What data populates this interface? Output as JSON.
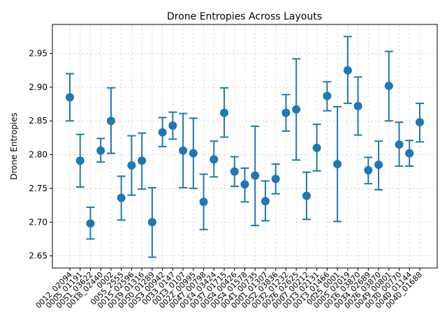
{
  "chart_data": {
    "type": "scatter",
    "title": "Drone Entropies Across Layouts",
    "xlabel": "",
    "ylabel": "Drone Entropies",
    "ylim": [
      2.632,
      2.993
    ],
    "yticks": [
      "2.65",
      "2.70",
      "2.75",
      "2.80",
      "2.85",
      "2.90",
      "2.95"
    ],
    "grid": true,
    "series_color": "#1f77b4",
    "categories": [
      "0012_02094",
      "0005_01191",
      "0051_03622",
      "0018_02440",
      "0002",
      "0055_2555",
      "0015_02596",
      "0019_01316",
      "0050_01289",
      "0053_00942",
      "0033_0147",
      "0013_0107",
      "0022_00995",
      "0047_00798",
      "0014_03424",
      "0037_01715",
      "0054_00426",
      "0054_01578",
      "0041_00735",
      "0001_01307",
      "0052_03836",
      "0032_01232",
      "0026_02625",
      "0007_00212",
      "0013_02131",
      "0013_01466",
      "0025_0001",
      "0005_02019",
      "0016_03870",
      "0034_02689",
      "0026_03870",
      "0049_00801",
      "0030_00770",
      "0040_01144",
      "0040_01688"
    ],
    "values": [
      2.885,
      2.791,
      2.698,
      2.806,
      2.85,
      2.736,
      2.784,
      2.791,
      2.7,
      2.833,
      2.843,
      2.806,
      2.802,
      2.73,
      2.793,
      2.862,
      2.775,
      2.756,
      2.769,
      2.731,
      2.764,
      2.862,
      2.867,
      2.739,
      2.81,
      2.887,
      2.786,
      2.925,
      2.872,
      2.777,
      2.785,
      2.902,
      2.815,
      2.802,
      2.848
    ],
    "err_low": [
      2.85,
      2.752,
      2.675,
      2.789,
      2.802,
      2.703,
      2.74,
      2.749,
      2.648,
      2.812,
      2.823,
      2.751,
      2.75,
      2.689,
      2.767,
      2.826,
      2.753,
      2.73,
      2.695,
      2.702,
      2.742,
      2.835,
      2.792,
      2.704,
      2.776,
      2.865,
      2.701,
      2.876,
      2.829,
      2.757,
      2.748,
      2.85,
      2.783,
      2.783,
      2.819
    ],
    "err_high": [
      2.92,
      2.83,
      2.722,
      2.824,
      2.899,
      2.768,
      2.828,
      2.832,
      2.751,
      2.855,
      2.863,
      2.861,
      2.854,
      2.771,
      2.82,
      2.899,
      2.797,
      2.78,
      2.842,
      2.761,
      2.786,
      2.889,
      2.942,
      2.774,
      2.845,
      2.908,
      2.871,
      2.975,
      2.915,
      2.796,
      2.82,
      2.953,
      2.848,
      2.821,
      2.876
    ]
  }
}
